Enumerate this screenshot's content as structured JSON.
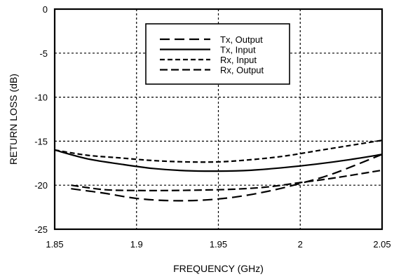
{
  "chart_data": {
    "type": "line",
    "title": "",
    "xlabel": "FREQUENCY (GHz)",
    "ylabel": "RETURN LOSS (dB)",
    "xlim": [
      1.85,
      2.05
    ],
    "ylim": [
      -25,
      0
    ],
    "x_ticks": [
      "1.85",
      "1.9",
      "1.95",
      "2",
      "2.05"
    ],
    "y_ticks": [
      "0",
      "-5",
      "-10",
      "-15",
      "-20",
      "-25"
    ],
    "grid": true,
    "legend_position": "top-center",
    "series": [
      {
        "name": "Tx, Output",
        "style": "long-dash",
        "x": [
          1.86,
          1.88,
          1.9,
          1.92,
          1.94,
          1.96,
          1.98,
          2.0,
          2.02,
          2.05
        ],
        "y": [
          -20.4,
          -20.9,
          -21.5,
          -21.75,
          -21.7,
          -21.35,
          -20.7,
          -19.8,
          -18.7,
          -16.5
        ]
      },
      {
        "name": "Tx, Input",
        "style": "solid",
        "x": [
          1.85,
          1.87,
          1.89,
          1.91,
          1.93,
          1.95,
          1.97,
          1.99,
          2.01,
          2.03,
          2.05
        ],
        "y": [
          -16.0,
          -17.0,
          -17.6,
          -18.1,
          -18.35,
          -18.4,
          -18.3,
          -18.0,
          -17.6,
          -17.1,
          -16.5
        ]
      },
      {
        "name": "Rx, Input",
        "style": "short-dash",
        "x": [
          1.85,
          1.87,
          1.89,
          1.91,
          1.93,
          1.95,
          1.97,
          1.99,
          2.01,
          2.03,
          2.05
        ],
        "y": [
          -16.0,
          -16.6,
          -16.9,
          -17.2,
          -17.35,
          -17.35,
          -17.1,
          -16.7,
          -16.1,
          -15.5,
          -14.9
        ]
      },
      {
        "name": "Rx, Output",
        "style": "dash",
        "x": [
          1.86,
          1.88,
          1.9,
          1.92,
          1.94,
          1.96,
          1.98,
          2.0,
          2.02,
          2.05
        ],
        "y": [
          -20.0,
          -20.5,
          -20.6,
          -20.6,
          -20.55,
          -20.45,
          -20.2,
          -19.7,
          -19.2,
          -18.3
        ]
      }
    ]
  }
}
